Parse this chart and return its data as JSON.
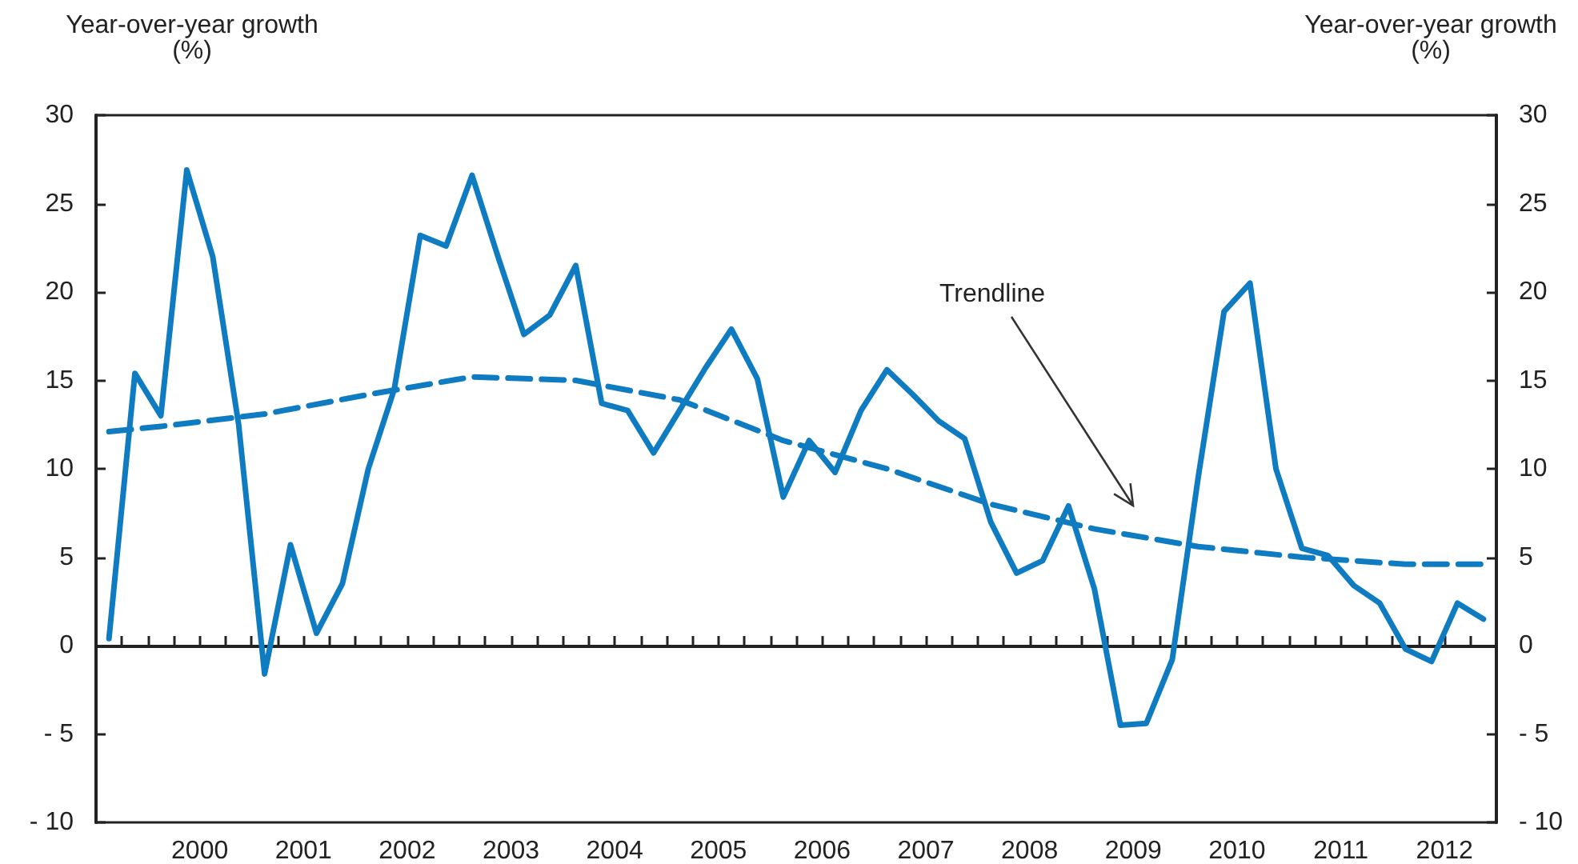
{
  "chart_data": {
    "type": "line",
    "ylabel": "Year-over-year growth\n(%)",
    "y2label": "Year-over-year growth\n(%)",
    "marker": "none",
    "x": [
      1999.625,
      1999.875,
      2000.125,
      2000.375,
      2000.625,
      2000.875,
      2001.125,
      2001.375,
      2001.625,
      2001.875,
      2002.125,
      2002.375,
      2002.625,
      2002.875,
      2003.125,
      2003.375,
      2003.625,
      2003.875,
      2004.125,
      2004.375,
      2004.625,
      2004.875,
      2005.125,
      2005.375,
      2005.625,
      2005.875,
      2006.125,
      2006.375,
      2006.625,
      2006.875,
      2007.125,
      2007.375,
      2007.625,
      2007.875,
      2008.125,
      2008.375,
      2008.625,
      2008.875,
      2009.125,
      2009.375,
      2009.625,
      2009.875,
      2010.125,
      2010.375,
      2010.625,
      2010.875,
      2011.125,
      2011.375,
      2011.625,
      2011.875,
      2012.125,
      2012.375,
      2012.625,
      2012.875
    ],
    "series": [
      {
        "color": "#0f7bc0",
        "line_style": "solid",
        "values": [
          0.4,
          15.4,
          13.0,
          26.9,
          22.0,
          12.5,
          -1.6,
          5.7,
          0.7,
          3.5,
          10.0,
          14.5,
          23.2,
          22.6,
          26.6,
          22.0,
          17.6,
          18.7,
          21.5,
          13.7,
          13.3,
          10.9,
          13.3,
          15.7,
          17.9,
          15.1,
          8.4,
          11.6,
          9.8,
          13.3,
          15.6,
          14.2,
          12.7,
          11.7,
          7.0,
          4.1,
          4.8,
          7.9,
          3.2,
          -4.5,
          -4.4,
          -0.8,
          9.5,
          18.9,
          20.5,
          10.0,
          5.5,
          5.1,
          3.4,
          2.4,
          -0.2,
          -0.9,
          2.4,
          1.5
        ]
      },
      {
        "type": "line",
        "color": "#0f7bc0",
        "line_style": "dashed",
        "x": [
          1999.625,
          2000.125,
          2001.125,
          2002.125,
          2003.125,
          2004.125,
          2005.125,
          2006.125,
          2007.125,
          2008.125,
          2009.125,
          2010.125,
          2011.125,
          2012.125,
          2012.875
        ],
        "values": [
          12.1,
          12.4,
          13.1,
          14.2,
          15.2,
          15.0,
          13.9,
          11.6,
          10.0,
          8.0,
          6.6,
          5.6,
          5.0,
          4.6,
          4.6
        ]
      }
    ],
    "xlim": [
      1999.5,
      2013.0
    ],
    "xticks": [
      {
        "value": 2000.5,
        "label": "2000"
      },
      {
        "value": 2001.5,
        "label": "2001"
      },
      {
        "value": 2002.5,
        "label": "2002"
      },
      {
        "value": 2003.5,
        "label": "2003"
      },
      {
        "value": 2004.5,
        "label": "2004"
      },
      {
        "value": 2005.5,
        "label": "2005"
      },
      {
        "value": 2006.5,
        "label": "2006"
      },
      {
        "value": 2007.5,
        "label": "2007"
      },
      {
        "value": 2008.5,
        "label": "2008"
      },
      {
        "value": 2009.5,
        "label": "2009"
      },
      {
        "value": 2010.5,
        "label": "2010"
      },
      {
        "value": 2011.5,
        "label": "2011"
      },
      {
        "value": 2012.5,
        "label": "2012"
      },
      {
        "value": 1999.75,
        "label": null
      },
      {
        "value": 2000.0,
        "label": null
      },
      {
        "value": 2000.25,
        "label": null
      },
      {
        "value": 2000.5,
        "label": null
      },
      {
        "value": 2000.75,
        "label": null
      },
      {
        "value": 2001.0,
        "label": null
      },
      {
        "value": 2001.25,
        "label": null
      },
      {
        "value": 2001.5,
        "label": null
      },
      {
        "value": 2001.75,
        "label": null
      },
      {
        "value": 2002.0,
        "label": null
      },
      {
        "value": 2002.25,
        "label": null
      },
      {
        "value": 2002.5,
        "label": null
      },
      {
        "value": 2002.75,
        "label": null
      },
      {
        "value": 2003.0,
        "label": null
      },
      {
        "value": 2003.25,
        "label": null
      },
      {
        "value": 2003.5,
        "label": null
      },
      {
        "value": 2003.75,
        "label": null
      },
      {
        "value": 2004.0,
        "label": null
      },
      {
        "value": 2004.25,
        "label": null
      },
      {
        "value": 2004.5,
        "label": null
      },
      {
        "value": 2004.75,
        "label": null
      },
      {
        "value": 2005.0,
        "label": null
      },
      {
        "value": 2005.25,
        "label": null
      },
      {
        "value": 2005.5,
        "label": null
      },
      {
        "value": 2005.75,
        "label": null
      },
      {
        "value": 2006.0,
        "label": null
      },
      {
        "value": 2006.25,
        "label": null
      },
      {
        "value": 2006.5,
        "label": null
      },
      {
        "value": 2006.75,
        "label": null
      },
      {
        "value": 2007.0,
        "label": null
      },
      {
        "value": 2007.25,
        "label": null
      },
      {
        "value": 2007.5,
        "label": null
      },
      {
        "value": 2007.75,
        "label": null
      },
      {
        "value": 2008.0,
        "label": null
      },
      {
        "value": 2008.25,
        "label": null
      },
      {
        "value": 2008.5,
        "label": null
      },
      {
        "value": 2008.75,
        "label": null
      },
      {
        "value": 2009.0,
        "label": null
      },
      {
        "value": 2009.25,
        "label": null
      },
      {
        "value": 2009.5,
        "label": null
      },
      {
        "value": 2009.75,
        "label": null
      },
      {
        "value": 2010.0,
        "label": null
      },
      {
        "value": 2010.25,
        "label": null
      },
      {
        "value": 2010.5,
        "label": null
      },
      {
        "value": 2010.75,
        "label": null
      },
      {
        "value": 2011.0,
        "label": null
      },
      {
        "value": 2011.25,
        "label": null
      },
      {
        "value": 2011.5,
        "label": null
      },
      {
        "value": 2011.75,
        "label": null
      },
      {
        "value": 2012.0,
        "label": null
      },
      {
        "value": 2012.25,
        "label": null
      },
      {
        "value": 2012.5,
        "label": null
      },
      {
        "value": 2012.75,
        "label": null
      }
    ],
    "ylim": [
      -10,
      30
    ],
    "yticks": [
      {
        "value": -10,
        "label": "- 10"
      },
      {
        "value": -5,
        "label": "- 5"
      },
      0,
      5,
      10,
      15,
      20,
      25,
      30
    ],
    "y2lim": [
      -10,
      30
    ],
    "y2ticks": [
      {
        "value": -10,
        "label": "- 10"
      },
      {
        "value": -5,
        "label": "- 5"
      },
      0,
      5,
      10,
      15,
      20,
      25,
      30
    ],
    "annotations": [
      "Trendline"
    ]
  }
}
